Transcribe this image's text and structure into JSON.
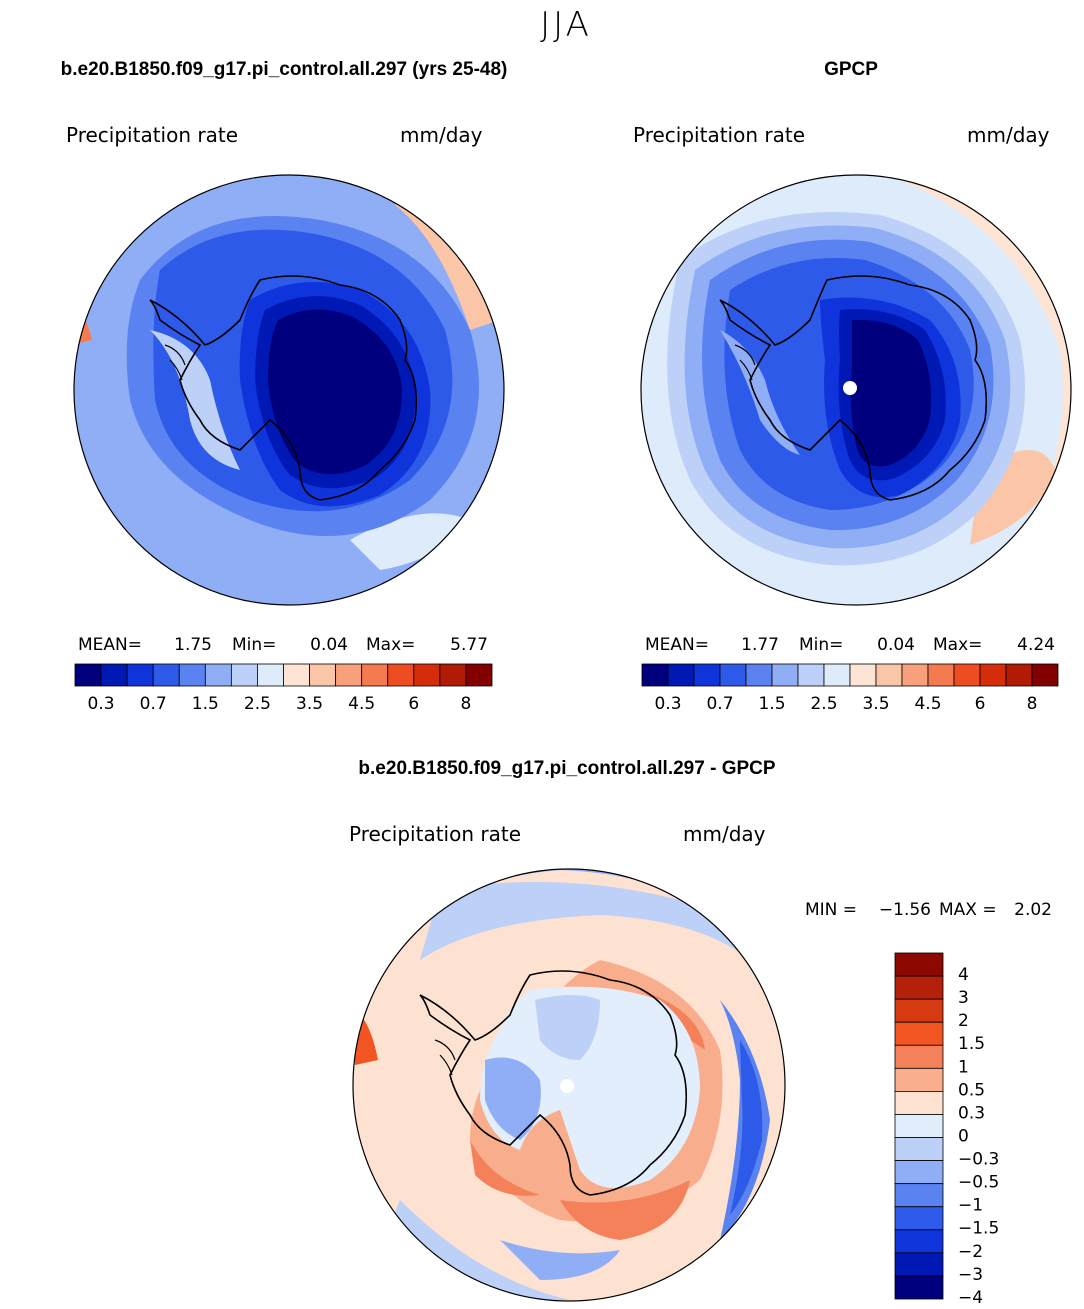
{
  "figure": {
    "title": "JJA"
  },
  "panels": {
    "model": {
      "title": "b.e20.B1850.f09_g17.pi_control.all.297 (yrs 25-48)",
      "variable": "Precipitation rate",
      "units": "mm/day",
      "stats": {
        "mean_label": "MEAN=",
        "mean": "1.75",
        "min_label": "Min=",
        "min": "0.04",
        "max_label": "Max=",
        "max": "5.77"
      }
    },
    "obs": {
      "title": "GPCP",
      "variable": "Precipitation rate",
      "units": "mm/day",
      "stats": {
        "mean_label": "MEAN=",
        "mean": "1.77",
        "min_label": "Min=",
        "min": "0.04",
        "max_label": "Max=",
        "max": "4.24"
      }
    },
    "diff": {
      "title": "b.e20.B1850.f09_g17.pi_control.all.297 - GPCP",
      "variable": "Precipitation rate",
      "units": "mm/day",
      "stats": {
        "min_label": "MIN =",
        "min": "−1.56",
        "max_label": "MAX =",
        "max": "2.02"
      }
    }
  },
  "colorbars": {
    "abs": {
      "colors": [
        "#00007f",
        "#0019b4",
        "#1034dc",
        "#2d5ae8",
        "#5a82f0",
        "#90aef5",
        "#bcd0f8",
        "#deebfb",
        "#fde4d5",
        "#fbc5a8",
        "#f8a07c",
        "#f47a50",
        "#ee4d22",
        "#d52c0a",
        "#b11a04",
        "#830000"
      ],
      "labels": [
        "0.3",
        "0.7",
        "1.5",
        "2.5",
        "3.5",
        "4.5",
        "6",
        "8"
      ]
    },
    "diff": {
      "colors": [
        "#8c0800",
        "#b4200a",
        "#d63a10",
        "#f25522",
        "#f4815a",
        "#f8ae8c",
        "#fde2d2",
        "#e2eefc",
        "#bcd0f8",
        "#90aef5",
        "#5a82f0",
        "#2d5ae8",
        "#1034dc",
        "#0019b4",
        "#00007f"
      ],
      "labels": [
        "4",
        "3",
        "2",
        "1.5",
        "1",
        "0.5",
        "0.3",
        "0",
        "−0.3",
        "−0.5",
        "−1",
        "−1.5",
        "−2",
        "−3",
        "−4"
      ]
    }
  },
  "map_colors": {
    "ocean_abs": "#90aef5",
    "ocean_diff": "#fde2d2",
    "coast": "#000000"
  }
}
